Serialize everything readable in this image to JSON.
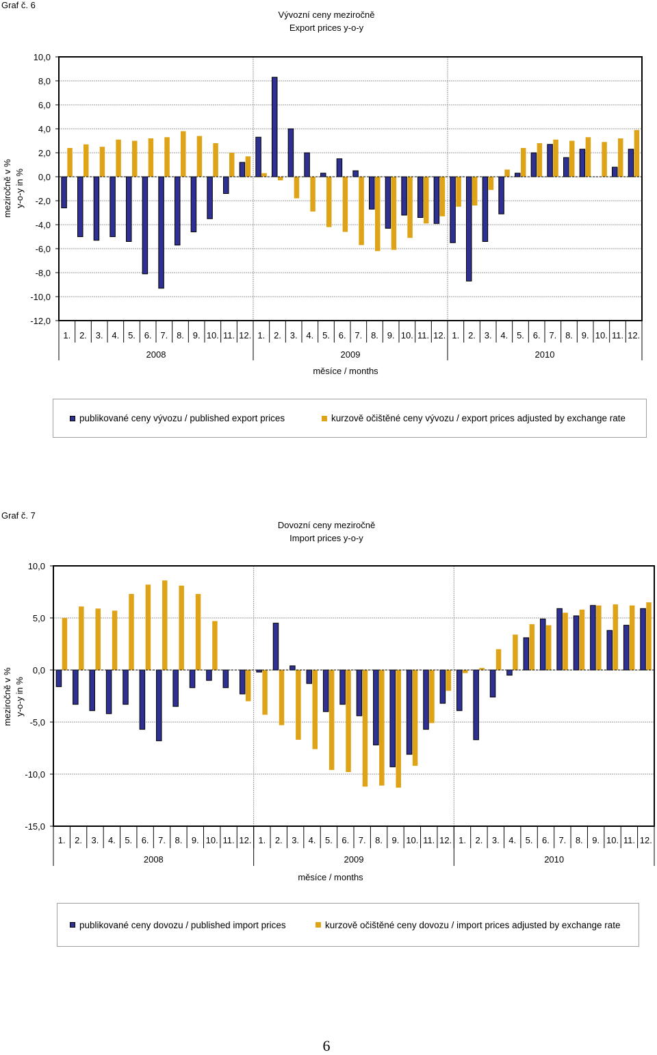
{
  "page_number": "6",
  "charts": [
    {
      "graph_label": "Graf č. 6",
      "title_cz": "Vývozní ceny meziročně",
      "title_en": "Export prices y-o-y",
      "ylabel_cz": "meziročně v %",
      "ylabel_en": "y-o-y in %",
      "xlabel": "měsíce / months",
      "legend": {
        "series1": "publikované ceny vývozu / published export prices",
        "series2": "kurzově očištěné ceny vývozu / export prices adjusted by exchange rate"
      }
    },
    {
      "graph_label": "Graf č. 7",
      "title_cz": "Dovozní ceny meziročně",
      "title_en": "Import prices y-o-y",
      "ylabel_cz": "meziročně v %",
      "ylabel_en": "y-o-y in %",
      "xlabel": "měsíce / months",
      "legend": {
        "series1": "publikované ceny dovozu / published import prices",
        "series2": "kurzově očištěné ceny dovozu / import prices adjusted by exchange rate"
      }
    }
  ],
  "colors": {
    "series1": "#2e3192",
    "series2": "#dfa318",
    "border": "#000000",
    "grid": "#9a9a9a"
  },
  "chart_data": [
    {
      "type": "bar",
      "title": "Vývozní ceny meziročně / Export prices y-o-y",
      "xlabel": "měsíce / months",
      "ylabel": "meziročně v % / y-o-y in %",
      "ylim": [
        -12,
        10
      ],
      "yticks": [
        10,
        8,
        6,
        4,
        2,
        0,
        -2,
        -4,
        -6,
        -8,
        -10,
        -12
      ],
      "ytick_labels": [
        "10,0",
        "8,0",
        "6,0",
        "4,0",
        "2,0",
        "0,0",
        "-2,0",
        "-4,0",
        "-6,0",
        "-8,0",
        "-10,0",
        "-12,0"
      ],
      "categories": [
        "1.",
        "2.",
        "3.",
        "4.",
        "5.",
        "6.",
        "7.",
        "8.",
        "9.",
        "10.",
        "11.",
        "12.",
        "1.",
        "2.",
        "3.",
        "4.",
        "5.",
        "6.",
        "7.",
        "8.",
        "9.",
        "10.",
        "11.",
        "12.",
        "1.",
        "2.",
        "3.",
        "4.",
        "5.",
        "6.",
        "7.",
        "8.",
        "9.",
        "10.",
        "11.",
        "12."
      ],
      "groups": [
        "2008",
        "2009",
        "2010"
      ],
      "series": [
        {
          "name": "publikované ceny vývozu / published export prices",
          "values": [
            -2.6,
            -5.0,
            -5.3,
            -5.0,
            -5.4,
            -8.1,
            -9.3,
            -5.7,
            -4.6,
            -3.5,
            -1.4,
            1.2,
            3.3,
            8.3,
            4.0,
            2.0,
            0.3,
            1.5,
            0.5,
            -2.7,
            -4.3,
            -3.2,
            -3.4,
            -3.9,
            -5.5,
            -8.7,
            -5.4,
            -3.1,
            0.3,
            2.0,
            2.7,
            1.6,
            2.3,
            0.0,
            0.8,
            2.3
          ]
        },
        {
          "name": "kurzově očištěné ceny vývozu / export prices adjusted by exchange rate",
          "values": [
            2.4,
            2.7,
            2.5,
            3.1,
            3.0,
            3.2,
            3.3,
            3.8,
            3.4,
            2.8,
            2.0,
            1.7,
            0.3,
            -0.3,
            -1.8,
            -2.9,
            -4.2,
            -4.6,
            -5.7,
            -6.2,
            -6.1,
            -5.1,
            -3.9,
            -3.3,
            -2.5,
            -2.4,
            -1.1,
            0.6,
            2.4,
            2.8,
            3.1,
            3.0,
            3.3,
            2.9,
            3.2,
            3.9
          ]
        }
      ]
    },
    {
      "type": "bar",
      "title": "Dovozní ceny meziročně / Import prices y-o-y",
      "xlabel": "měsíce / months",
      "ylabel": "meziročně v % / y-o-y in %",
      "ylim": [
        -15,
        10
      ],
      "yticks": [
        10,
        5,
        0,
        -5,
        -10,
        -15
      ],
      "ytick_labels": [
        "10,0",
        "5,0",
        "0,0",
        "-5,0",
        "-10,0",
        "-15,0"
      ],
      "categories": [
        "1.",
        "2.",
        "3.",
        "4.",
        "5.",
        "6.",
        "7.",
        "8.",
        "9.",
        "10.",
        "11.",
        "12.",
        "1.",
        "2.",
        "3.",
        "4.",
        "5.",
        "6.",
        "7.",
        "8.",
        "9.",
        "10.",
        "11.",
        "12.",
        "1.",
        "2.",
        "3.",
        "4.",
        "5.",
        "6.",
        "7.",
        "8.",
        "9.",
        "10.",
        "11.",
        "12."
      ],
      "groups": [
        "2008",
        "2009",
        "2010"
      ],
      "series": [
        {
          "name": "publikované ceny dovozu / published import prices",
          "values": [
            -1.6,
            -3.3,
            -3.9,
            -4.2,
            -3.3,
            -5.7,
            -6.8,
            -3.5,
            -1.7,
            -1.0,
            -1.7,
            -2.3,
            -0.2,
            4.5,
            0.4,
            -1.3,
            -4.0,
            -3.3,
            -4.4,
            -7.2,
            -9.3,
            -8.1,
            -5.7,
            -3.2,
            -3.9,
            -6.7,
            -2.6,
            -0.5,
            3.1,
            4.9,
            5.9,
            5.2,
            6.2,
            3.8,
            4.3,
            5.9
          ]
        },
        {
          "name": "kurzově očištěné ceny dovozu / import prices adjusted by exchange rate",
          "values": [
            5.0,
            6.1,
            5.9,
            5.7,
            7.3,
            8.2,
            8.6,
            8.1,
            7.3,
            4.7,
            0.0,
            -3.0,
            -4.3,
            -5.3,
            -6.7,
            -7.6,
            -9.6,
            -9.8,
            -11.2,
            -11.1,
            -11.3,
            -9.2,
            -5.1,
            -2.0,
            -0.3,
            0.2,
            2.0,
            3.4,
            4.4,
            4.3,
            5.5,
            5.8,
            6.2,
            6.3,
            6.2,
            6.5
          ]
        }
      ]
    }
  ]
}
